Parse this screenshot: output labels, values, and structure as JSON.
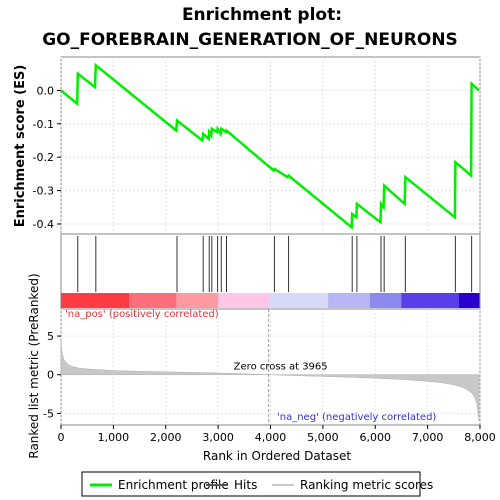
{
  "chart_data": {
    "type": "line",
    "title_line1": "Enrichment plot:",
    "title_line2": "GO_FOREBRAIN_GENERATION_OF_NEURONS",
    "es_panel": {
      "ylabel": "Enrichment score (ES)",
      "ylim": [
        -0.43,
        0.1
      ],
      "yticks": [
        0.0,
        -0.1,
        -0.2,
        -0.3,
        -0.4
      ],
      "ytick_labels": [
        "0.0",
        "-0.1",
        "-0.2",
        "-0.3",
        "-0.4"
      ],
      "series": [
        {
          "name": "Enrichment profile",
          "color": "#00ee00",
          "x": [
            0,
            310,
            320,
            650,
            665,
            2200,
            2215,
            2700,
            2715,
            2820,
            2830,
            2870,
            2880,
            2980,
            2990,
            3050,
            3060,
            3150,
            3160,
            4060,
            4075,
            4330,
            4345,
            5550,
            5560,
            5640,
            5650,
            6100,
            6110,
            6160,
            6170,
            6560,
            6575,
            7520,
            7530,
            7830,
            7840,
            7980
          ],
          "y": [
            0.0,
            -0.04,
            0.05,
            0.01,
            0.075,
            -0.12,
            -0.09,
            -0.15,
            -0.13,
            -0.145,
            -0.125,
            -0.135,
            -0.115,
            -0.125,
            -0.115,
            -0.13,
            -0.115,
            -0.125,
            -0.12,
            -0.24,
            -0.235,
            -0.26,
            -0.255,
            -0.41,
            -0.37,
            -0.38,
            -0.34,
            -0.395,
            -0.34,
            -0.35,
            -0.285,
            -0.34,
            -0.26,
            -0.38,
            -0.215,
            -0.255,
            0.02,
            0.0
          ]
        }
      ]
    },
    "hits": {
      "name": "Hits",
      "positions": [
        320,
        665,
        2215,
        2715,
        2830,
        2880,
        2990,
        3060,
        3160,
        4075,
        4345,
        5560,
        5650,
        6110,
        6170,
        6575,
        7530,
        7840
      ]
    },
    "rank_bar": {
      "segments": [
        {
          "from": 0,
          "to": 1300,
          "color": "#ff3b45"
        },
        {
          "from": 1300,
          "to": 2200,
          "color": "#ff6e7b"
        },
        {
          "from": 2200,
          "to": 3000,
          "color": "#ff9aa3"
        },
        {
          "from": 3000,
          "to": 3965,
          "color": "#ffc6e6"
        },
        {
          "from": 3965,
          "to": 5100,
          "color": "#d8d8f8"
        },
        {
          "from": 5100,
          "to": 5900,
          "color": "#b6b6f4"
        },
        {
          "from": 5900,
          "to": 6500,
          "color": "#8a8aee"
        },
        {
          "from": 6500,
          "to": 7600,
          "color": "#5a3ee8"
        },
        {
          "from": 7600,
          "to": 7980,
          "color": "#2a00cc"
        }
      ]
    },
    "metric_panel": {
      "ylabel": "Ranked list metric (PreRanked)",
      "xlabel": "Rank in Ordered Dataset",
      "ylim": [
        -6.5,
        8.5
      ],
      "yticks": [
        5,
        0,
        -5
      ],
      "ytick_labels": [
        "5",
        "0",
        "-5"
      ],
      "xlim": [
        0,
        8000
      ],
      "xticks": [
        0,
        1000,
        2000,
        3000,
        4000,
        5000,
        6000,
        7000,
        8000
      ],
      "xtick_labels": [
        "0",
        "1,000",
        "2,000",
        "3,000",
        "4,000",
        "5,000",
        "6,000",
        "7,000",
        "8,000"
      ],
      "series": [
        {
          "name": "Ranking metric scores",
          "color": "#c0c0c0",
          "x": [
            0,
            20,
            60,
            120,
            200,
            350,
            600,
            1000,
            1500,
            2000,
            2500,
            3000,
            3500,
            3965,
            4500,
            5000,
            5500,
            6000,
            6500,
            7000,
            7300,
            7500,
            7650,
            7750,
            7850,
            7900,
            7940,
            7960,
            7980
          ],
          "y": [
            4.5,
            2.8,
            1.9,
            1.4,
            1.1,
            0.85,
            0.7,
            0.55,
            0.45,
            0.38,
            0.3,
            0.22,
            0.12,
            0.0,
            -0.12,
            -0.22,
            -0.32,
            -0.45,
            -0.6,
            -0.85,
            -1.05,
            -1.3,
            -1.6,
            -1.9,
            -2.4,
            -3.0,
            -3.8,
            -4.8,
            -6.0
          ]
        }
      ],
      "zero_cross_label": "Zero cross at 3965",
      "zero_cross_x": 3965,
      "pos_label": "'na_pos' (positively correlated)",
      "neg_label": "'na_neg' (negatively correlated)",
      "pos_color": "#e8323c",
      "neg_color": "#3030d8"
    },
    "legend": {
      "items": [
        {
          "label": "Enrichment profile",
          "color": "#00ee00",
          "kind": "line"
        },
        {
          "label": "Hits",
          "color": "#555555",
          "kind": "line"
        },
        {
          "label": "Ranking metric scores",
          "color": "#c8c8c8",
          "kind": "line"
        }
      ]
    }
  }
}
